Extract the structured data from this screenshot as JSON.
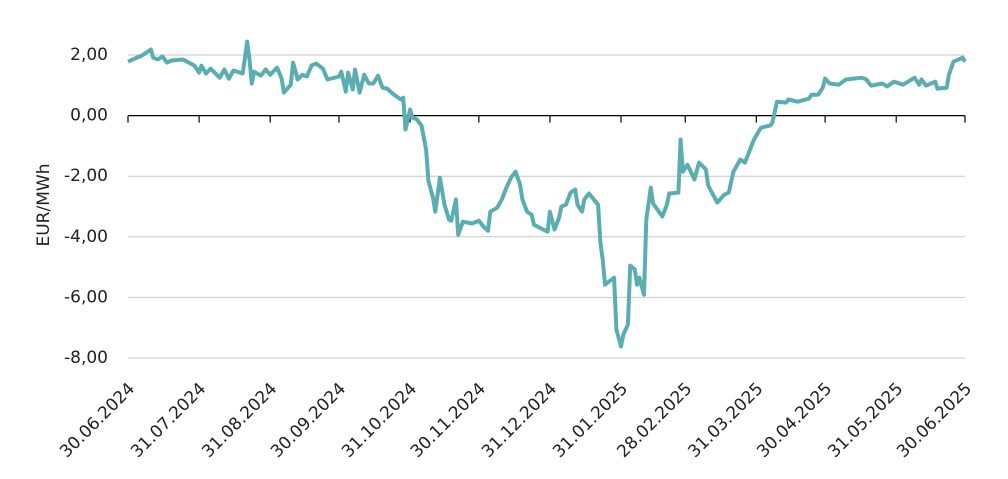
{
  "chart_data": {
    "type": "line",
    "y_label": "EUR/MWh",
    "color": "#5aaeb2",
    "x": [
      "30.06.2024",
      "02.07.2024",
      "06.07.2024",
      "10.07.2024",
      "11.07.2024",
      "13.07.2024",
      "15.07.2024",
      "17.07.2024",
      "19.07.2024",
      "24.07.2024",
      "29.07.2024",
      "31.07.2024",
      "01.08.2024",
      "03.08.2024",
      "05.08.2024",
      "09.08.2024",
      "11.08.2024",
      "13.08.2024",
      "15.08.2024",
      "19.08.2024",
      "21.08.2024",
      "22.08.2024",
      "23.08.2024",
      "24.08.2024",
      "27.08.2024",
      "29.08.2024",
      "31.08.2024",
      "03.09.2024",
      "05.09.2024",
      "06.09.2024",
      "09.09.2024",
      "10.09.2024",
      "12.09.2024",
      "14.09.2024",
      "16.09.2024",
      "18.09.2024",
      "20.09.2024",
      "23.09.2024",
      "25.09.2024",
      "30.09.2024",
      "01.10.2024",
      "03.10.2024",
      "04.10.2024",
      "06.10.2024",
      "07.10.2024",
      "09.10.2024",
      "11.10.2024",
      "13.10.2024",
      "15.10.2024",
      "17.10.2024",
      "19.10.2024",
      "21.10.2024",
      "24.10.2024",
      "27.10.2024",
      "28.10.2024",
      "29.10.2024",
      "31.10.2024",
      "01.11.2024",
      "03.11.2024",
      "05.11.2024",
      "07.11.2024",
      "08.11.2024",
      "10.11.2024",
      "11.11.2024",
      "13.11.2024",
      "15.11.2024",
      "17.11.2024",
      "18.11.2024",
      "20.11.2024",
      "21.11.2024",
      "23.11.2024",
      "27.11.2024",
      "30.11.2024",
      "02.12.2024",
      "04.12.2024",
      "05.12.2024",
      "08.12.2024",
      "10.12.2024",
      "12.12.2024",
      "14.12.2024",
      "16.12.2024",
      "18.12.2024",
      "19.12.2024",
      "21.12.2024",
      "23.12.2024",
      "24.12.2024",
      "28.12.2024",
      "30.12.2024",
      "31.12.2024",
      "02.01.2025",
      "04.01.2025",
      "05.01.2025",
      "07.01.2025",
      "09.01.2025",
      "11.01.2025",
      "12.01.2025",
      "14.01.2025",
      "15.01.2025",
      "17.01.2025",
      "21.01.2025",
      "22.01.2025",
      "23.01.2025",
      "24.01.2025",
      "28.01.2025",
      "29.01.2025",
      "31.01.2025",
      "01.02.2025",
      "03.02.2025",
      "04.02.2025",
      "06.02.2025",
      "07.02.2025",
      "08.02.2025",
      "10.02.2025",
      "11.02.2025",
      "13.02.2025",
      "14.02.2025",
      "18.02.2025",
      "20.02.2025",
      "21.02.2025",
      "25.02.2025",
      "26.02.2025",
      "27.02.2025",
      "01.03.2025",
      "04.03.2025",
      "06.03.2025",
      "09.03.2025",
      "10.03.2025",
      "14.03.2025",
      "17.03.2025",
      "19.03.2025",
      "21.03.2025",
      "24.03.2025",
      "26.03.2025",
      "30.03.2025",
      "02.04.2025",
      "06.04.2025",
      "07.04.2025",
      "09.04.2025",
      "13.04.2025",
      "14.04.2025",
      "18.04.2025",
      "23.04.2025",
      "24.04.2025",
      "27.04.2025",
      "29.04.2025",
      "30.04.2025",
      "02.05.2025",
      "06.05.2025",
      "09.05.2025",
      "16.05.2025",
      "18.05.2025",
      "20.05.2025",
      "25.05.2025",
      "27.05.2025",
      "30.05.2025",
      "03.06.2025",
      "08.06.2025",
      "10.06.2025",
      "11.06.2025",
      "13.06.2025",
      "17.06.2025",
      "18.06.2025",
      "22.06.2025",
      "23.06.2025",
      "25.06.2025",
      "29.06.2025",
      "30.06.2025"
    ],
    "values": [
      1.78,
      1.85,
      1.98,
      2.18,
      1.91,
      1.85,
      1.95,
      1.75,
      1.82,
      1.85,
      1.65,
      1.42,
      1.65,
      1.39,
      1.55,
      1.25,
      1.52,
      1.22,
      1.49,
      1.39,
      2.44,
      1.85,
      1.06,
      1.45,
      1.32,
      1.52,
      1.35,
      1.58,
      1.22,
      0.76,
      1.02,
      1.75,
      1.19,
      1.35,
      1.29,
      1.65,
      1.72,
      1.55,
      1.19,
      1.29,
      1.45,
      0.79,
      1.42,
      0.86,
      1.52,
      0.76,
      1.35,
      1.06,
      1.06,
      1.32,
      0.92,
      0.89,
      0.69,
      0.53,
      0.59,
      -0.46,
      0.2,
      -0.07,
      -0.13,
      -0.33,
      -1.12,
      -2.15,
      -2.71,
      -3.17,
      -2.05,
      -2.94,
      -3.43,
      -3.47,
      -2.77,
      -3.93,
      -3.5,
      -3.56,
      -3.47,
      -3.66,
      -3.8,
      -3.17,
      -3.04,
      -2.77,
      -2.38,
      -2.05,
      -1.85,
      -2.28,
      -2.77,
      -3.17,
      -3.27,
      -3.6,
      -3.76,
      -3.83,
      -3.17,
      -3.76,
      -3.37,
      -3.0,
      -2.94,
      -2.54,
      -2.44,
      -2.94,
      -3.17,
      -2.77,
      -2.57,
      -2.94,
      -4.19,
      -4.75,
      -5.58,
      -5.35,
      -7.06,
      -7.62,
      -7.23,
      -6.9,
      -4.95,
      -5.08,
      -5.58,
      -5.35,
      -5.91,
      -3.43,
      -2.38,
      -2.9,
      -3.33,
      -2.94,
      -2.57,
      -2.54,
      -0.79,
      -1.85,
      -1.62,
      -2.11,
      -1.55,
      -1.78,
      -2.31,
      -2.87,
      -2.61,
      -2.54,
      -1.85,
      -1.45,
      -1.55,
      -0.79,
      -0.4,
      -0.33,
      -0.23,
      0.46,
      0.43,
      0.53,
      0.46,
      0.56,
      0.69,
      0.69,
      0.92,
      1.22,
      1.06,
      1.02,
      1.19,
      1.25,
      1.19,
      0.99,
      1.06,
      0.96,
      1.12,
      1.02,
      1.25,
      1.02,
      1.19,
      0.99,
      1.12,
      0.89,
      0.92,
      1.35,
      1.78,
      1.91,
      1.78
    ],
    "xlim": [
      "30.06.2024",
      "30.06.2025"
    ],
    "xticks": [
      "30.06.2024",
      "31.07.2024",
      "31.08.2024",
      "30.09.2024",
      "31.10.2024",
      "30.11.2024",
      "31.12.2024",
      "31.01.2025",
      "28.02.2025",
      "31.03.2025",
      "30.04.2025",
      "31.05.2025",
      "30.06.2025"
    ],
    "ylim": [
      -8,
      2
    ],
    "yticks": [
      {
        "value": 2,
        "label": "2,00"
      },
      {
        "value": 0,
        "label": "0,00"
      },
      {
        "value": -2,
        "label": "-2,00"
      },
      {
        "value": -4,
        "label": "-4,00"
      },
      {
        "value": -6,
        "label": "-6,00"
      },
      {
        "value": -8,
        "label": "-8,00"
      }
    ],
    "grid": true
  }
}
